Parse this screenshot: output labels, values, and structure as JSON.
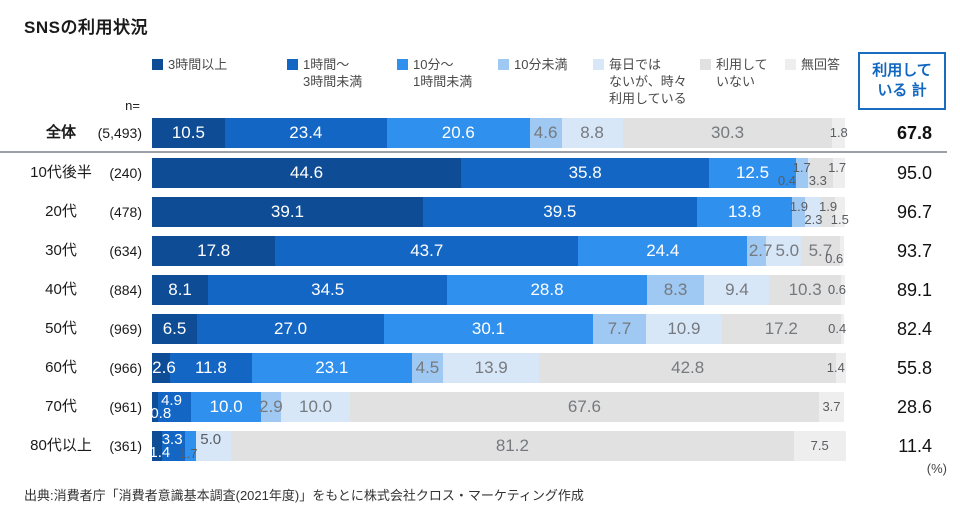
{
  "title": "SNSの利用状況",
  "n_label": "n=",
  "percent_label": "(%)",
  "source": "出典:消費者庁「消費者意識基本調査(2021年度)」をもとに株式会社クロス・マーケティング作成",
  "total_box": {
    "line1": "利用して",
    "line2": "いる 計"
  },
  "legend_items": [
    {
      "label": "3時間以上",
      "color": "#0e4c96"
    },
    {
      "label": "1時間〜\n3時間未満",
      "color": "#1366c4"
    },
    {
      "label": "10分〜\n1時間未満",
      "color": "#2f90ee"
    },
    {
      "label": "10分未満",
      "color": "#9fc8f2"
    },
    {
      "label": "毎日では\nないが、時々\n利用している",
      "color": "#d8e7f8"
    },
    {
      "label": "利用して\nいない",
      "color": "#e1e1e1"
    },
    {
      "label": "無回答",
      "color": "#eeeeee"
    }
  ],
  "chart_data": {
    "type": "bar",
    "stacked": true,
    "orientation": "horizontal",
    "unit": "%",
    "xlim": [
      0,
      100
    ],
    "title": "SNSの利用状況",
    "series_names": [
      "3時間以上",
      "1時間〜3時間未満",
      "10分〜1時間未満",
      "10分未満",
      "毎日ではないが、時々利用している",
      "利用していない",
      "無回答"
    ],
    "colors": [
      "#0e4c96",
      "#1366c4",
      "#2f90ee",
      "#9fc8f2",
      "#d8e7f8",
      "#e1e1e1",
      "#eeeeee"
    ],
    "total_column_label": "利用している 計",
    "categories": [
      "全体",
      "10代後半",
      "20代",
      "30代",
      "40代",
      "50代",
      "60代",
      "70代",
      "80代以上"
    ],
    "n_values": [
      "(5,493)",
      "(240)",
      "(478)",
      "(634)",
      "(884)",
      "(969)",
      "(966)",
      "(961)",
      "(361)"
    ],
    "rows": [
      {
        "label": "全体",
        "n": "(5,493)",
        "bold": true,
        "total": "67.8",
        "values": [
          10.5,
          23.4,
          20.6,
          4.6,
          8.8,
          30.3,
          1.8
        ],
        "labels": [
          {
            "t": "10.5",
            "m": "in",
            "w": 1
          },
          {
            "t": "23.4",
            "m": "in",
            "w": 1
          },
          {
            "t": "20.6",
            "m": "in",
            "w": 1
          },
          {
            "t": "4.6",
            "m": "in"
          },
          {
            "t": "8.8",
            "m": "in"
          },
          {
            "t": "30.3",
            "m": "in"
          },
          {
            "t": "1.8",
            "m": "in-sm"
          }
        ]
      },
      {
        "label": "10代後半",
        "n": "(240)",
        "total": "95.0",
        "values": [
          44.6,
          35.8,
          12.5,
          1.7,
          0.4,
          3.3,
          1.7
        ],
        "labels": [
          {
            "t": "44.6",
            "m": "in",
            "w": 1
          },
          {
            "t": "35.8",
            "m": "in",
            "w": 1
          },
          {
            "t": "12.5",
            "m": "in",
            "w": 1
          },
          {
            "t": "1.7",
            "m": "hi"
          },
          {
            "t": "0.4",
            "m": "lo",
            "dx": -22
          },
          {
            "t": "3.3",
            "m": "lo",
            "dx": -4
          },
          {
            "t": "1.7",
            "m": "hi",
            "dx": -2
          }
        ]
      },
      {
        "label": "20代",
        "n": "(478)",
        "total": "96.7",
        "values": [
          39.1,
          39.5,
          13.8,
          1.9,
          2.3,
          1.9,
          1.5
        ],
        "labels": [
          {
            "t": "39.1",
            "m": "in",
            "w": 1
          },
          {
            "t": "39.5",
            "m": "in",
            "w": 1
          },
          {
            "t": "13.8",
            "m": "in",
            "w": 1
          },
          {
            "t": "1.9",
            "m": "hi"
          },
          {
            "t": "2.3",
            "m": "lo"
          },
          {
            "t": "1.9",
            "m": "hi"
          },
          {
            "t": "1.5",
            "m": "lo"
          }
        ]
      },
      {
        "label": "30代",
        "n": "(634)",
        "total": "93.7",
        "values": [
          17.8,
          43.7,
          24.4,
          2.7,
          5.0,
          5.7,
          0.6
        ],
        "labels": [
          {
            "t": "17.8",
            "m": "in",
            "w": 1
          },
          {
            "t": "43.7",
            "m": "in",
            "w": 1
          },
          {
            "t": "24.4",
            "m": "in",
            "w": 1
          },
          {
            "t": "2.7",
            "m": "in",
            "dx": 4
          },
          {
            "t": "5.0",
            "m": "in",
            "dx": 4
          },
          {
            "t": "5.7",
            "m": "in"
          },
          {
            "t": "0.6",
            "m": "lo",
            "dx": -8
          }
        ]
      },
      {
        "label": "40代",
        "n": "(884)",
        "total": "89.1",
        "values": [
          8.1,
          34.5,
          28.8,
          8.3,
          9.4,
          10.3,
          0.6
        ],
        "labels": [
          {
            "t": "8.1",
            "m": "in",
            "w": 1
          },
          {
            "t": "34.5",
            "m": "in",
            "w": 1
          },
          {
            "t": "28.8",
            "m": "in",
            "w": 1
          },
          {
            "t": "8.3",
            "m": "in"
          },
          {
            "t": "9.4",
            "m": "in"
          },
          {
            "t": "10.3",
            "m": "in"
          },
          {
            "t": "0.6",
            "m": "in-sm",
            "dx": -6
          }
        ]
      },
      {
        "label": "50代",
        "n": "(969)",
        "total": "82.4",
        "values": [
          6.5,
          27.0,
          30.1,
          7.7,
          10.9,
          17.2,
          0.4
        ],
        "labels": [
          {
            "t": "6.5",
            "m": "in",
            "w": 1
          },
          {
            "t": "27.0",
            "m": "in",
            "w": 1
          },
          {
            "t": "30.1",
            "m": "in",
            "w": 1
          },
          {
            "t": "7.7",
            "m": "in"
          },
          {
            "t": "10.9",
            "m": "in"
          },
          {
            "t": "17.2",
            "m": "in"
          },
          {
            "t": "0.4",
            "m": "in-sm",
            "dx": -5
          }
        ]
      },
      {
        "label": "60代",
        "n": "(966)",
        "total": "55.8",
        "values": [
          2.6,
          11.8,
          23.1,
          4.5,
          13.9,
          42.8,
          1.4
        ],
        "labels": [
          {
            "t": "2.6",
            "m": "in",
            "w": 1,
            "dx": 3
          },
          {
            "t": "11.8",
            "m": "in",
            "w": 1
          },
          {
            "t": "23.1",
            "m": "in",
            "w": 1
          },
          {
            "t": "4.5",
            "m": "in"
          },
          {
            "t": "13.9",
            "m": "in"
          },
          {
            "t": "42.8",
            "m": "in"
          },
          {
            "t": "1.4",
            "m": "in-sm",
            "dx": -5
          }
        ]
      },
      {
        "label": "70代",
        "n": "(961)",
        "total": "28.6",
        "values": [
          0.8,
          4.9,
          10.0,
          2.9,
          10.0,
          67.6,
          3.7
        ],
        "labels": [
          {
            "t": "0.8",
            "m": "lo-lg",
            "w": 1,
            "dx": 6
          },
          {
            "t": "4.9",
            "m": "hi-lg",
            "w": 1,
            "dx": -3
          },
          {
            "t": "10.0",
            "m": "in",
            "w": 1
          },
          {
            "t": "2.9",
            "m": "in"
          },
          {
            "t": "10.0",
            "m": "in"
          },
          {
            "t": "67.6",
            "m": "in"
          },
          {
            "t": "3.7",
            "m": "in-sm"
          }
        ]
      },
      {
        "label": "80代以上",
        "n": "(361)",
        "total": "11.4",
        "values": [
          1.4,
          3.3,
          1.7,
          0,
          5.0,
          81.2,
          7.5
        ],
        "labels": [
          {
            "t": "1.4",
            "m": "lo-lg",
            "w": 1,
            "dx": 3
          },
          {
            "t": "3.3",
            "m": "hi-lg",
            "w": 1,
            "dx": -1
          },
          {
            "t": "1.7",
            "m": "lo",
            "dx": -2
          },
          null,
          {
            "t": "5.0",
            "m": "hi-lg",
            "dx": -3
          },
          {
            "t": "81.2",
            "m": "in"
          },
          {
            "t": "7.5",
            "m": "in-sm"
          }
        ]
      }
    ]
  }
}
